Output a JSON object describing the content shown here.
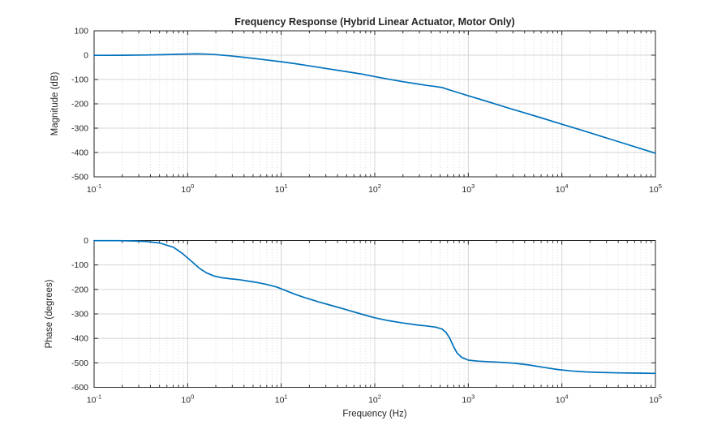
{
  "figure": {
    "background": "#ffffff",
    "axis_color": "#262626",
    "grid_color": "#d4d4d4",
    "minor_grid_color": "#dbdbdb",
    "text_color": "#262626"
  },
  "chart_data": [
    {
      "type": "line",
      "name": "magnitude-bode-subplot",
      "title": "Frequency Response (Hybrid Linear Actuator, Motor Only)",
      "xlabel": "",
      "ylabel": "Magnitude (dB)",
      "x_scale": "log10",
      "x_unit": "Hz",
      "xlim_log10": [
        -1,
        5
      ],
      "ylim": [
        -500,
        100
      ],
      "yticks": [
        100,
        0,
        -100,
        -200,
        -300,
        -400,
        -500
      ],
      "xtick_base": "10",
      "xtick_exponents": [
        -1,
        0,
        1,
        2,
        3,
        4,
        5
      ],
      "grid": true,
      "minor_grid": true,
      "legend": "none",
      "line_color": "#0072BD",
      "series_name": "Magnitude",
      "points_log10f_value": [
        [
          -1.0,
          -0.5
        ],
        [
          -0.7,
          -0.4
        ],
        [
          -0.45,
          0.6
        ],
        [
          -0.25,
          2.0
        ],
        [
          -0.1,
          3.8
        ],
        [
          0.0,
          4.8
        ],
        [
          0.1,
          5.2
        ],
        [
          0.2,
          4.4
        ],
        [
          0.3,
          2.4
        ],
        [
          0.45,
          -2.5
        ],
        [
          0.6,
          -8.5
        ],
        [
          0.8,
          -17.5
        ],
        [
          1.0,
          -27
        ],
        [
          1.15,
          -35
        ],
        [
          1.3,
          -44
        ],
        [
          1.5,
          -56
        ],
        [
          1.7,
          -68
        ],
        [
          1.85,
          -77
        ],
        [
          2.0,
          -88
        ],
        [
          2.15,
          -99
        ],
        [
          2.3,
          -109
        ],
        [
          2.45,
          -118
        ],
        [
          2.55,
          -124
        ],
        [
          2.65,
          -129
        ],
        [
          2.72,
          -133
        ],
        [
          2.8,
          -143
        ],
        [
          2.9,
          -155
        ],
        [
          3.0,
          -167
        ],
        [
          3.2,
          -190
        ],
        [
          3.4,
          -214
        ],
        [
          3.6,
          -237
        ],
        [
          3.8,
          -260
        ],
        [
          4.0,
          -284
        ],
        [
          4.2,
          -307
        ],
        [
          4.4,
          -331
        ],
        [
          4.6,
          -355
        ],
        [
          4.8,
          -379
        ],
        [
          5.0,
          -403
        ]
      ]
    },
    {
      "type": "line",
      "name": "phase-bode-subplot",
      "title": "",
      "xlabel": "Frequency (Hz)",
      "ylabel": "Phase (degrees)",
      "x_scale": "log10",
      "x_unit": "Hz",
      "xlim_log10": [
        -1,
        5
      ],
      "ylim": [
        -600,
        0
      ],
      "yticks": [
        0,
        -100,
        -200,
        -300,
        -400,
        -500,
        -600
      ],
      "xtick_base": "10",
      "xtick_exponents": [
        -1,
        0,
        1,
        2,
        3,
        4,
        5
      ],
      "grid": true,
      "minor_grid": true,
      "legend": "none",
      "line_color": "#0072BD",
      "series_name": "Phase",
      "points_log10f_value": [
        [
          -1.0,
          -0.5
        ],
        [
          -0.75,
          -0.8
        ],
        [
          -0.6,
          -1.5
        ],
        [
          -0.45,
          -4
        ],
        [
          -0.3,
          -10
        ],
        [
          -0.15,
          -28
        ],
        [
          -0.05,
          -55
        ],
        [
          0.05,
          -88
        ],
        [
          0.12,
          -112
        ],
        [
          0.2,
          -132
        ],
        [
          0.28,
          -145
        ],
        [
          0.35,
          -151
        ],
        [
          0.45,
          -156
        ],
        [
          0.55,
          -160
        ],
        [
          0.65,
          -166
        ],
        [
          0.75,
          -172
        ],
        [
          0.85,
          -180
        ],
        [
          0.95,
          -190
        ],
        [
          1.05,
          -205
        ],
        [
          1.15,
          -220
        ],
        [
          1.25,
          -233
        ],
        [
          1.4,
          -251
        ],
        [
          1.55,
          -267
        ],
        [
          1.7,
          -283
        ],
        [
          1.85,
          -300
        ],
        [
          2.0,
          -316
        ],
        [
          2.15,
          -328
        ],
        [
          2.3,
          -337
        ],
        [
          2.45,
          -345
        ],
        [
          2.55,
          -349
        ],
        [
          2.65,
          -354
        ],
        [
          2.72,
          -362
        ],
        [
          2.76,
          -375
        ],
        [
          2.8,
          -398
        ],
        [
          2.84,
          -432
        ],
        [
          2.88,
          -460
        ],
        [
          2.93,
          -478
        ],
        [
          3.0,
          -489
        ],
        [
          3.1,
          -493
        ],
        [
          3.2,
          -495
        ],
        [
          3.35,
          -498
        ],
        [
          3.5,
          -502
        ],
        [
          3.65,
          -509
        ],
        [
          3.8,
          -518
        ],
        [
          3.95,
          -527
        ],
        [
          4.1,
          -533
        ],
        [
          4.25,
          -537
        ],
        [
          4.4,
          -539
        ],
        [
          4.6,
          -541
        ],
        [
          4.8,
          -542
        ],
        [
          5.0,
          -543
        ]
      ]
    }
  ]
}
